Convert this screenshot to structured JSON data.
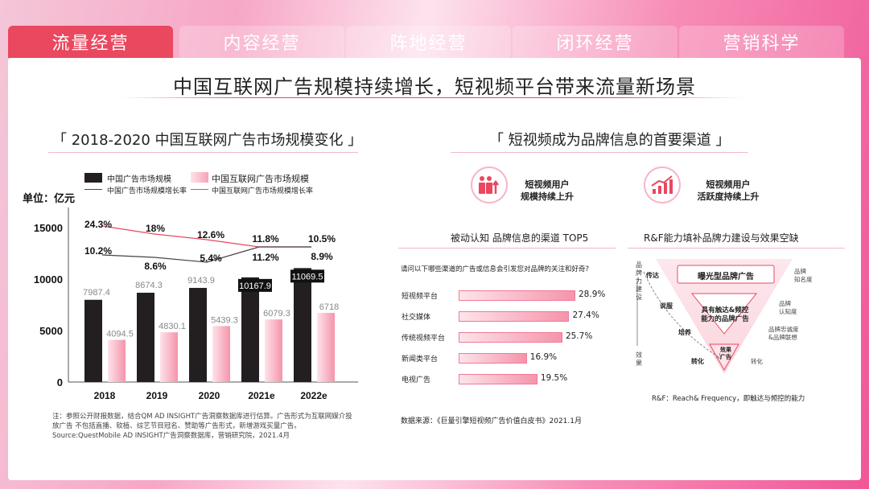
{
  "tabs": [
    {
      "label": "流量经营",
      "active": true
    },
    {
      "label": "内容经营",
      "active": false
    },
    {
      "label": "阵地经营",
      "active": false
    },
    {
      "label": "闭环经营",
      "active": false
    },
    {
      "label": "营销科学",
      "active": false
    }
  ],
  "main_title": "中国互联网广告规模持续增长，短视频平台带来流量新场景",
  "left_section": {
    "title": "「 2018-2020 中国互联网广告市场规模变化 」",
    "unit": "单位：亿元",
    "note": "注：参照公开财报数据，结合QM AD INSIGHT广告洞察数据库进行估算。广告形式为互联网媒介投放广告 不包括直播、软植、综艺节目冠名、赞助等广告形式，新增游戏买量广告。Source:QuestMobile AD INSIGHT广告洞察数据库，营销研究院，2021.4月"
  },
  "right_section": {
    "title": "「 短视频成为品牌信息的首要渠道 」",
    "badge1": "短视频用户\n规模持续上升",
    "badge2": "短视频用户\n活跃度持续上升",
    "top5_title": "被动认知 品牌信息的渠道 TOP5",
    "question": "请问以下哪些渠道的广告或信息会引发您对品牌的关注和好奇?",
    "channels": [
      {
        "label": "短视频平台",
        "value": 28.9,
        "text": "28.9%"
      },
      {
        "label": "社交媒体",
        "value": 27.4,
        "text": "27.4%"
      },
      {
        "label": "传统视频平台",
        "value": 25.7,
        "text": "25.7%"
      },
      {
        "label": "新闻类平台",
        "value": 16.9,
        "text": "16.9%"
      },
      {
        "label": "电视广告",
        "value": 19.5,
        "text": "19.5%"
      }
    ],
    "source": "数据来源：《巨量引擎短视频广告价值白皮书》2021.1月",
    "rf_title": "R&F能力填补品牌力建设与效果空缺",
    "rf": {
      "top": "曝光型品牌广告",
      "mid_line1": "具有触达&频控",
      "mid_line2": "能力的品牌广告",
      "bottom_line1": "效果",
      "bottom_line2": "广告",
      "left_axis": "品牌力建设",
      "left_axis_bottom": "效果",
      "steps_left": [
        "传达",
        "说服",
        "培养",
        "转化"
      ],
      "steps_right": [
        "品牌\n知名度",
        "品牌\n认知度",
        "品牌忠诚度\n&品牌联想",
        "转化"
      ],
      "caption": "R&F：Reach& Frequency，即触达与频控的能力"
    }
  },
  "chart_data": {
    "type": "bar",
    "categories": [
      "2018",
      "2019",
      "2020",
      "2021e",
      "2022e"
    ],
    "series": [
      {
        "name": "中国广告市场规模",
        "values": [
          7987.4,
          8674.3,
          9143.9,
          10167.9,
          11069.5
        ],
        "color": "#231f20"
      },
      {
        "name": "中国互联网广告市场规模",
        "values": [
          4094.5,
          4830.1,
          5439.3,
          6079.3,
          6718
        ],
        "color": "#f7a3b5"
      }
    ],
    "lines": [
      {
        "name": "中国广告市场规模增长率",
        "values": [
          10.2,
          8.6,
          5.4,
          11.2,
          8.9
        ],
        "labels": [
          "10.2%",
          "8.6%",
          "5.4%",
          "11.2%",
          "8.9%"
        ],
        "color": "#444444"
      },
      {
        "name": "中国互联网广告市场规模增长率",
        "values": [
          24.3,
          18,
          12.6,
          11.8,
          10.5
        ],
        "labels": [
          "24.3%",
          "18%",
          "12.6%",
          "11.8%",
          "10.5%"
        ],
        "color": "#e9485f"
      }
    ],
    "bar_labels": {
      "s1": [
        "7987.4",
        "8674.3",
        "9143.9",
        "10167.9",
        "11069.5"
      ],
      "s2": [
        "4094.5",
        "4830.1",
        "5439.3",
        "6079.3",
        "6718"
      ]
    },
    "yticks": [
      "0",
      "5000",
      "10000",
      "15000"
    ],
    "ylim": [
      0,
      15000
    ],
    "ylabel": "单位：亿元"
  }
}
